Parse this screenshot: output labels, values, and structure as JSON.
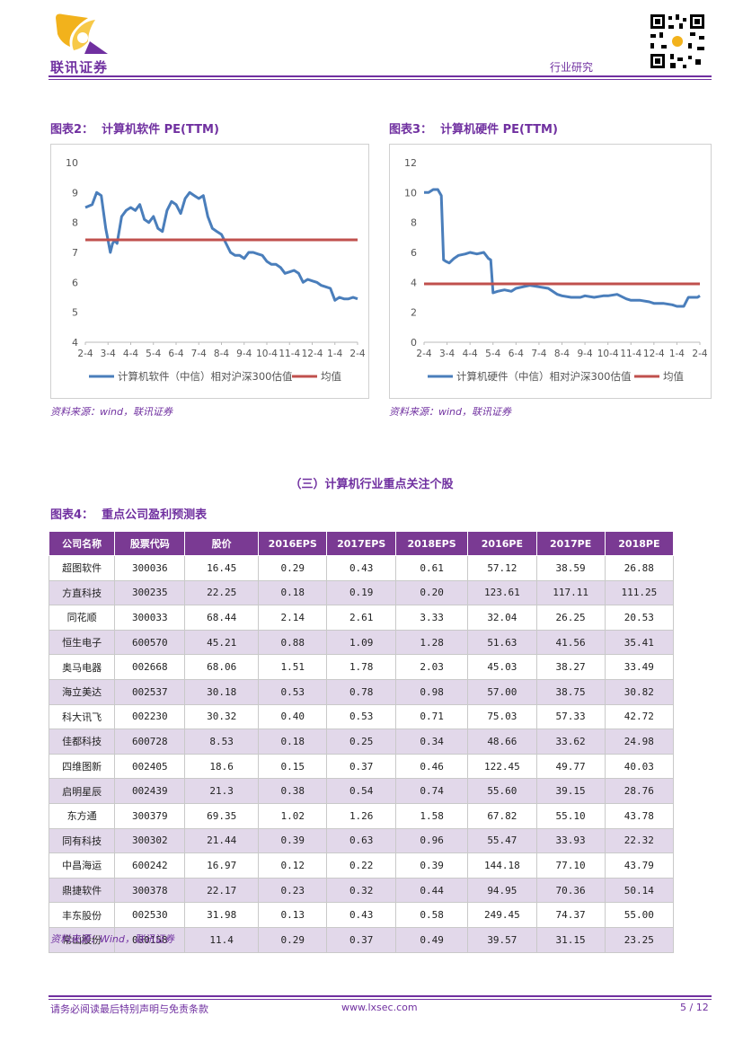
{
  "header": {
    "company": "联讯证券",
    "doc_type": "行业研究",
    "colors": {
      "accent": "#7030a0",
      "logo_yellow": "#f2b21c"
    }
  },
  "chart2": {
    "label": "图表2：",
    "title": "计算机软件 PE(TTM)",
    "source": "资料来源：wind，联讯证券",
    "chart_data": {
      "type": "line",
      "title": "计算机软件 PE(TTM)",
      "ylim": [
        4,
        10
      ],
      "yticks": [
        "4",
        "5",
        "6",
        "7",
        "8",
        "9",
        "10"
      ],
      "x_labels": [
        "2-4",
        "3-4",
        "4-4",
        "5-4",
        "6-4",
        "7-4",
        "8-4",
        "9-4",
        "10-4",
        "11-4",
        "12-4",
        "1-4",
        "2-4"
      ],
      "series": [
        {
          "name": "计算机软件（中信）相对沪深300估值",
          "color": "#4a7ebb",
          "x": [
            0,
            0.3,
            0.5,
            0.7,
            0.9,
            1.0,
            1.1,
            1.2,
            1.3,
            1.4,
            1.6,
            1.8,
            2.0,
            2.2,
            2.4,
            2.6,
            2.8,
            3.0,
            3.2,
            3.4,
            3.6,
            3.8,
            4.0,
            4.2,
            4.4,
            4.6,
            4.8,
            5.0,
            5.2,
            5.4,
            5.6,
            5.8,
            6.0,
            6.2,
            6.4,
            6.6,
            6.8,
            7.0,
            7.2,
            7.4,
            7.6,
            7.8,
            8.0,
            8.2,
            8.4,
            8.6,
            8.8,
            9.0,
            9.2,
            9.4,
            9.6,
            9.8,
            10.0,
            10.2,
            10.4,
            10.6,
            10.8,
            11.0,
            11.2,
            11.4,
            11.6,
            11.8,
            12.0
          ],
          "y": [
            8.5,
            8.6,
            9.0,
            8.9,
            7.8,
            7.4,
            7.0,
            7.3,
            7.4,
            7.3,
            8.2,
            8.4,
            8.5,
            8.4,
            8.6,
            8.1,
            8.0,
            8.2,
            7.8,
            7.7,
            8.4,
            8.7,
            8.6,
            8.3,
            8.8,
            9.0,
            8.9,
            8.8,
            8.9,
            8.2,
            7.8,
            7.7,
            7.6,
            7.3,
            7.0,
            6.9,
            6.9,
            6.8,
            7.0,
            7.0,
            6.95,
            6.9,
            6.7,
            6.6,
            6.6,
            6.5,
            6.3,
            6.35,
            6.4,
            6.3,
            6.0,
            6.1,
            6.05,
            6.0,
            5.9,
            5.85,
            5.8,
            5.4,
            5.5,
            5.45,
            5.45,
            5.5,
            5.45
          ]
        },
        {
          "name": "均值",
          "color": "#c0504d",
          "x": [
            0,
            12
          ],
          "y": [
            7.42,
            7.42
          ]
        }
      ]
    }
  },
  "chart3": {
    "label": "图表3：",
    "title": "计算机硬件 PE(TTM)",
    "source": "资料来源：wind，联讯证券",
    "chart_data": {
      "type": "line",
      "title": "计算机硬件 PE(TTM)",
      "ylim": [
        0,
        12
      ],
      "yticks": [
        "0",
        "2",
        "4",
        "6",
        "8",
        "10",
        "12"
      ],
      "x_labels": [
        "2-4",
        "3-4",
        "4-4",
        "5-4",
        "6-4",
        "7-4",
        "8-4",
        "9-4",
        "10-4",
        "11-4",
        "12-4",
        "1-4",
        "2-4"
      ],
      "series": [
        {
          "name": "计算机硬件（中信）相对沪深300估值",
          "color": "#4a7ebb",
          "x": [
            0,
            0.2,
            0.4,
            0.6,
            0.75,
            0.85,
            0.95,
            1.1,
            1.3,
            1.5,
            1.8,
            2.0,
            2.3,
            2.6,
            2.8,
            2.9,
            3.0,
            3.2,
            3.5,
            3.8,
            4.0,
            4.3,
            4.6,
            5.0,
            5.4,
            5.8,
            6.0,
            6.4,
            6.8,
            7.0,
            7.4,
            7.8,
            8.0,
            8.4,
            8.8,
            9.0,
            9.4,
            9.8,
            10.0,
            10.4,
            10.8,
            11.0,
            11.3,
            11.5,
            11.7,
            11.9,
            12.0
          ],
          "y": [
            10.0,
            10.0,
            10.2,
            10.2,
            9.8,
            5.5,
            5.4,
            5.3,
            5.6,
            5.8,
            5.9,
            6.0,
            5.9,
            6.0,
            5.6,
            5.5,
            3.3,
            3.4,
            3.5,
            3.4,
            3.6,
            3.7,
            3.8,
            3.7,
            3.6,
            3.2,
            3.1,
            3.0,
            3.0,
            3.1,
            3.0,
            3.1,
            3.1,
            3.2,
            2.9,
            2.8,
            2.8,
            2.7,
            2.6,
            2.6,
            2.5,
            2.4,
            2.4,
            3.0,
            3.0,
            3.0,
            3.1
          ]
        },
        {
          "name": "均值",
          "color": "#c0504d",
          "x": [
            0,
            12
          ],
          "y": [
            3.9,
            3.9
          ]
        }
      ]
    }
  },
  "section": {
    "title": "（三）计算机行业重点关注个股"
  },
  "table": {
    "label": "图表4：",
    "title": "重点公司盈利预测表",
    "headers": [
      "公司名称",
      "股票代码",
      "股价",
      "2016EPS",
      "2017EPS",
      "2018EPS",
      "2016PE",
      "2017PE",
      "2018PE"
    ],
    "rows": [
      [
        "超图软件",
        "300036",
        "16.45",
        "0.29",
        "0.43",
        "0.61",
        "57.12",
        "38.59",
        "26.88"
      ],
      [
        "方直科技",
        "300235",
        "22.25",
        "0.18",
        "0.19",
        "0.20",
        "123.61",
        "117.11",
        "111.25"
      ],
      [
        "同花顺",
        "300033",
        "68.44",
        "2.14",
        "2.61",
        "3.33",
        "32.04",
        "26.25",
        "20.53"
      ],
      [
        "恒生电子",
        "600570",
        "45.21",
        "0.88",
        "1.09",
        "1.28",
        "51.63",
        "41.56",
        "35.41"
      ],
      [
        "奥马电器",
        "002668",
        "68.06",
        "1.51",
        "1.78",
        "2.03",
        "45.03",
        "38.27",
        "33.49"
      ],
      [
        "海立美达",
        "002537",
        "30.18",
        "0.53",
        "0.78",
        "0.98",
        "57.00",
        "38.75",
        "30.82"
      ],
      [
        "科大讯飞",
        "002230",
        "30.32",
        "0.40",
        "0.53",
        "0.71",
        "75.03",
        "57.33",
        "42.72"
      ],
      [
        "佳都科技",
        "600728",
        "8.53",
        "0.18",
        "0.25",
        "0.34",
        "48.66",
        "33.62",
        "24.98"
      ],
      [
        "四维图新",
        "002405",
        "18.6",
        "0.15",
        "0.37",
        "0.46",
        "122.45",
        "49.77",
        "40.03"
      ],
      [
        "启明星辰",
        "002439",
        "21.3",
        "0.38",
        "0.54",
        "0.74",
        "55.60",
        "39.15",
        "28.76"
      ],
      [
        "东方通",
        "300379",
        "69.35",
        "1.02",
        "1.26",
        "1.58",
        "67.82",
        "55.10",
        "43.78"
      ],
      [
        "同有科技",
        "300302",
        "21.44",
        "0.39",
        "0.63",
        "0.96",
        "55.47",
        "33.93",
        "22.32"
      ],
      [
        "中昌海运",
        "600242",
        "16.97",
        "0.12",
        "0.22",
        "0.39",
        "144.18",
        "77.10",
        "43.79"
      ],
      [
        "鼎捷软件",
        "300378",
        "22.17",
        "0.23",
        "0.32",
        "0.44",
        "94.95",
        "70.36",
        "50.14"
      ],
      [
        "丰东股份",
        "002530",
        "31.98",
        "0.13",
        "0.43",
        "0.58",
        "249.45",
        "74.37",
        "55.00"
      ],
      [
        "常山股份",
        "000158",
        "11.4",
        "0.29",
        "0.37",
        "0.49",
        "39.57",
        "31.15",
        "23.25"
      ]
    ],
    "source": "资料来源：Wind，联讯证券"
  },
  "footer": {
    "disclaimer": "请务必阅读最后特别声明与免责条款",
    "website": "www.lxsec.com",
    "page": "5 / 12"
  }
}
